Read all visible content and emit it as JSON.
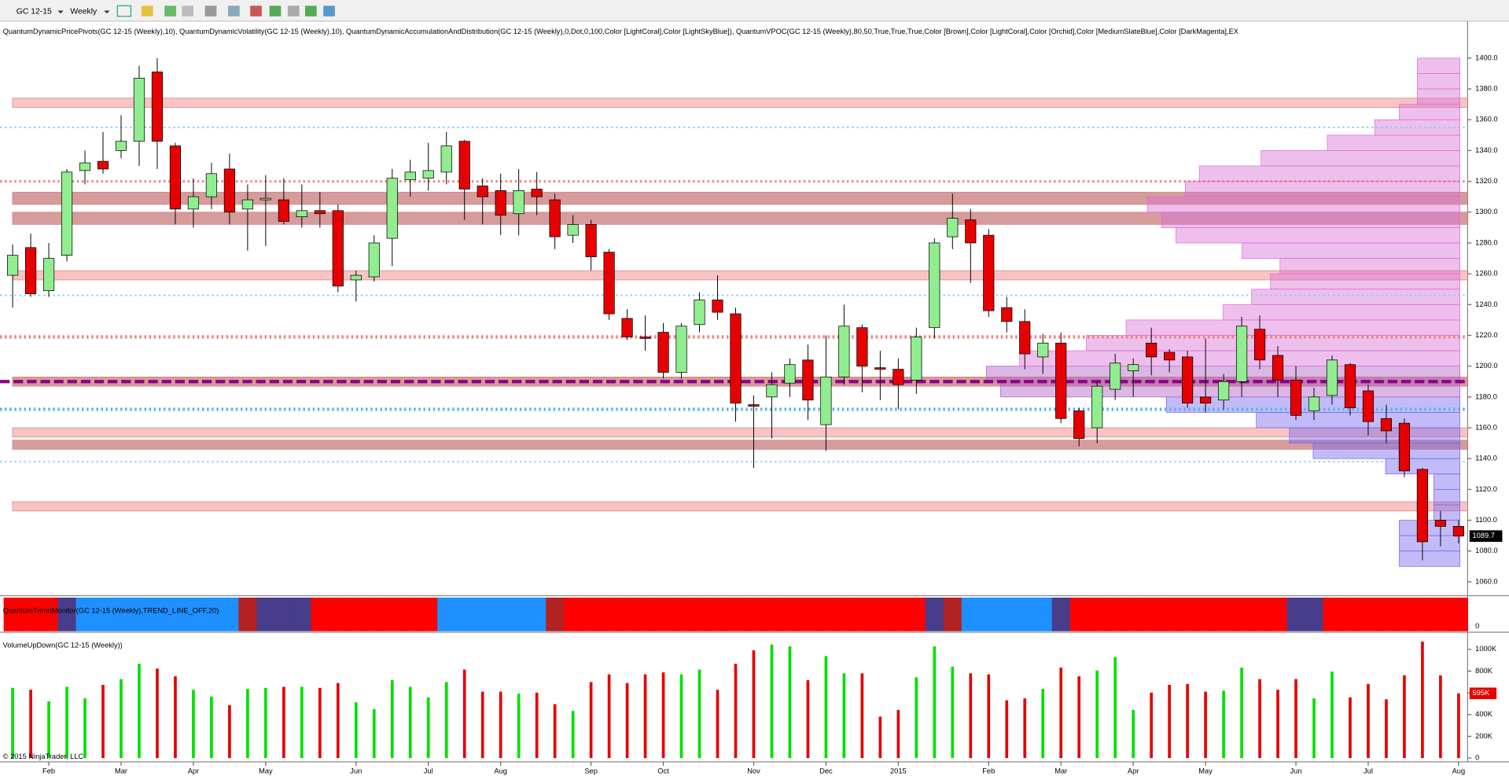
{
  "header": {
    "symbol": "GC 12-15",
    "interval": "Weekly"
  },
  "footer": "© 2015 NinjaTrader, LLC",
  "chart_data": [
    {
      "type": "candlestick",
      "title": "QuantumDynamicPricePivots(GC 12-15 (Weekly),10), QuantumDynamicVolatility(GC 12-15 (Weekly),10), QuantumDynamicAccumulationAndDistribution(GC 12-15 (Weekly),0,Dot,0,100,Color [LightCoral],Color [LightSkyBlue]), QuantumVPOC(GC 12-15 (Weekly),80,50,True,True,True,Color [Brown],Color [LightCoral],Color [Orchid],Color [MediumSlateBlue],Color [DarkMagenta],EX",
      "open": [
        1259,
        1277,
        1249,
        1272,
        1327,
        1333,
        1340,
        1346,
        1391,
        1343,
        1302,
        1310,
        1328,
        1302,
        1308,
        1308,
        1297,
        1301,
        1301,
        1256,
        1258,
        1283,
        1321,
        1322,
        1326,
        1346,
        1317,
        1314,
        1299,
        1315,
        1308,
        1285,
        1292,
        1274,
        1231,
        1219,
        1222,
        1196,
        1227,
        1243,
        1234,
        1175,
        1180,
        1189,
        1204,
        1162,
        1193,
        1225,
        1199,
        1198,
        1191,
        1225,
        1284,
        1295,
        1285,
        1238,
        1229,
        1206,
        1215,
        1171,
        1160,
        1185,
        1197,
        1215,
        1209,
        1206,
        1180,
        1178,
        1190,
        1224,
        1207,
        1191,
        1171,
        1181,
        1201,
        1184,
        1166,
        1163,
        1133,
        1100,
        1096
      ],
      "high": [
        1279,
        1286,
        1280,
        1328,
        1340,
        1352,
        1363,
        1395,
        1400,
        1345,
        1322,
        1332,
        1338,
        1318,
        1324,
        1322,
        1318,
        1313,
        1305,
        1262,
        1285,
        1328,
        1334,
        1345,
        1352,
        1347,
        1322,
        1325,
        1328,
        1326,
        1312,
        1298,
        1295,
        1276,
        1237,
        1233,
        1228,
        1228,
        1248,
        1259,
        1238,
        1181,
        1196,
        1205,
        1214,
        1220,
        1240,
        1227,
        1210,
        1205,
        1225,
        1283,
        1312,
        1302,
        1289,
        1245,
        1237,
        1221,
        1222,
        1173,
        1190,
        1208,
        1205,
        1225,
        1211,
        1210,
        1218,
        1195,
        1232,
        1233,
        1213,
        1200,
        1186,
        1207,
        1202,
        1188,
        1175,
        1166,
        1134,
        1106,
        1100
      ],
      "low": [
        1238,
        1245,
        1245,
        1268,
        1318,
        1325,
        1335,
        1330,
        1328,
        1292,
        1290,
        1302,
        1292,
        1275,
        1278,
        1292,
        1290,
        1290,
        1248,
        1242,
        1255,
        1265,
        1310,
        1314,
        1318,
        1295,
        1292,
        1285,
        1285,
        1298,
        1276,
        1280,
        1262,
        1230,
        1217,
        1210,
        1192,
        1192,
        1222,
        1230,
        1164,
        1134,
        1153,
        1180,
        1165,
        1145,
        1188,
        1183,
        1178,
        1172,
        1182,
        1218,
        1276,
        1254,
        1232,
        1222,
        1198,
        1195,
        1163,
        1148,
        1150,
        1178,
        1180,
        1194,
        1196,
        1173,
        1170,
        1172,
        1180,
        1198,
        1180,
        1165,
        1165,
        1175,
        1168,
        1155,
        1150,
        1128,
        1074,
        1083,
        1085
      ],
      "close": [
        1272,
        1247,
        1270,
        1326,
        1332,
        1328,
        1346,
        1387,
        1346,
        1302,
        1310,
        1325,
        1300,
        1308,
        1309,
        1294,
        1301,
        1299,
        1252,
        1259,
        1280,
        1322,
        1326,
        1327,
        1343,
        1315,
        1310,
        1298,
        1314,
        1310,
        1284,
        1292,
        1271,
        1234,
        1219,
        1218,
        1196,
        1226,
        1243,
        1235,
        1176,
        1174,
        1188,
        1201,
        1178,
        1193,
        1226,
        1200,
        1198,
        1188,
        1219,
        1280,
        1296,
        1280,
        1236,
        1229,
        1208,
        1215,
        1166,
        1153,
        1187,
        1202,
        1201,
        1206,
        1204,
        1176,
        1176,
        1190,
        1226,
        1204,
        1191,
        1168,
        1180,
        1204,
        1173,
        1164,
        1158,
        1132,
        1086,
        1096,
        1089.7
      ],
      "up_color": "#90ee90",
      "down_color": "#e60000",
      "ylim": [
        1051,
        1424
      ],
      "yticks": [
        {
          "value": 1060,
          "label": "1060.0"
        },
        {
          "value": 1080,
          "label": "1080.0"
        },
        {
          "value": 1100,
          "label": "1100.0"
        },
        {
          "value": 1120,
          "label": "1120.0"
        },
        {
          "value": 1140,
          "label": "1140.0"
        },
        {
          "value": 1160,
          "label": "1160.0"
        },
        {
          "value": 1180,
          "label": "1180.0"
        },
        {
          "value": 1200,
          "label": "1200.0"
        },
        {
          "value": 1220,
          "label": "1220.0"
        },
        {
          "value": 1240,
          "label": "1240.0"
        },
        {
          "value": 1260,
          "label": "1260.0"
        },
        {
          "value": 1280,
          "label": "1280.0"
        },
        {
          "value": 1300,
          "label": "1300.0"
        },
        {
          "value": 1320,
          "label": "1320.0"
        },
        {
          "value": 1340,
          "label": "1340.0"
        },
        {
          "value": 1360,
          "label": "1360.0"
        },
        {
          "value": 1380,
          "label": "1380.0"
        },
        {
          "value": 1400,
          "label": "1400.0"
        }
      ],
      "xlim": [
        -0.7,
        80.5
      ],
      "xticks": [
        {
          "value": 2,
          "label": "Feb"
        },
        {
          "value": 6,
          "label": "Mar"
        },
        {
          "value": 10,
          "label": "Apr"
        },
        {
          "value": 14,
          "label": "May"
        },
        {
          "value": 19,
          "label": "Jun"
        },
        {
          "value": 23,
          "label": "Jul"
        },
        {
          "value": 27,
          "label": "Aug"
        },
        {
          "value": 32,
          "label": "Sep"
        },
        {
          "value": 36,
          "label": "Oct"
        },
        {
          "value": 41,
          "label": "Nov"
        },
        {
          "value": 45,
          "label": "Dec"
        },
        {
          "value": 49,
          "label": "2015"
        },
        {
          "value": 54,
          "label": "Feb"
        },
        {
          "value": 58,
          "label": "Mar"
        },
        {
          "value": 62,
          "label": "Apr"
        },
        {
          "value": 66,
          "label": "May"
        },
        {
          "value": 71,
          "label": "Jun"
        },
        {
          "value": 75,
          "label": "Jul"
        },
        {
          "value": 80,
          "label": "Aug"
        }
      ],
      "zones": [
        {
          "low": 1368,
          "high": 1374,
          "color": "#f7b9b9"
        },
        {
          "low": 1305,
          "high": 1313,
          "color": "#cf8a8a"
        },
        {
          "low": 1292,
          "high": 1300,
          "color": "#cf8a8a"
        },
        {
          "low": 1256,
          "high": 1262,
          "color": "#f7b9b9"
        },
        {
          "low": 1187,
          "high": 1193,
          "color": "#cf8a8a"
        },
        {
          "low": 1154,
          "high": 1160,
          "color": "#f7b9b9"
        },
        {
          "low": 1146,
          "high": 1152,
          "color": "#cf8a8a"
        },
        {
          "low": 1106,
          "high": 1112,
          "color": "#f7b9b9"
        }
      ],
      "levels": [
        {
          "value": 1355,
          "color": "#87cefa",
          "width": 1.5
        },
        {
          "value": 1320,
          "color": "#f08080",
          "width": 2.5
        },
        {
          "value": 1246,
          "color": "#87cefa",
          "width": 1.5
        },
        {
          "value": 1219,
          "color": "#f08080",
          "width": 3.5
        },
        {
          "value": 1190,
          "color": "#8b008b",
          "width": 3.5
        },
        {
          "value": 1172,
          "color": "#5ab4f0",
          "width": 3.5
        },
        {
          "value": 1138,
          "color": "#87cefa",
          "width": 1.5
        }
      ],
      "profile": {
        "bins": [
          1070,
          1080,
          1090,
          1100,
          1110,
          1120,
          1130,
          1140,
          1150,
          1160,
          1170,
          1180,
          1190,
          1200,
          1210,
          1220,
          1230,
          1240,
          1250,
          1260,
          1270,
          1280,
          1290,
          1300,
          1310,
          1320,
          1330,
          1340,
          1350,
          1360,
          1370,
          1380,
          1390,
          1400
        ],
        "values": [
          12.8,
          12.8,
          12.8,
          5.5,
          5.5,
          5.5,
          15.7,
          31,
          36,
          43,
          62,
          97,
          100,
          93,
          78.9,
          70.5,
          50,
          44,
          40,
          38,
          46,
          60,
          63,
          66,
          58,
          55,
          42,
          28,
          18,
          12.8,
          9,
          9,
          9
        ],
        "colors": [
          "#7b68ee",
          "#7b68ee",
          "#7b68ee",
          "#7b68ee",
          "#7b68ee",
          "#7b68ee",
          "#7b68ee",
          "#7b68ee",
          "#7b68ee",
          "#7b68ee",
          "#7b68ee",
          "#b05fc8",
          "#b05fc8",
          "#da70d6",
          "#da70d6",
          "#da70d6",
          "#da70d6",
          "#da70d6",
          "#da70d6",
          "#da70d6",
          "#da70d6",
          "#da70d6",
          "#da70d6",
          "#da70d6",
          "#da70d6",
          "#da70d6",
          "#da70d6",
          "#da70d6",
          "#da70d6",
          "#da70d6",
          "#da70d6",
          "#da70d6",
          "#da70d6"
        ]
      }
    },
    {
      "type": "band",
      "title": "QuantumTrendMonitor(GC 12-15 (Weekly),TREND_LINE_OFF,20)",
      "yticks": [
        0
      ],
      "colors": [
        "#ff0000",
        "#ff0000",
        "#ff0000",
        "#483d8b",
        "#1e90ff",
        "#1e90ff",
        "#1e90ff",
        "#1e90ff",
        "#1e90ff",
        "#1e90ff",
        "#1e90ff",
        "#1e90ff",
        "#1e90ff",
        "#b22222",
        "#483d8b",
        "#483d8b",
        "#483d8b",
        "#ff0000",
        "#ff0000",
        "#ff0000",
        "#ff0000",
        "#ff0000",
        "#ff0000",
        "#ff0000",
        "#1e90ff",
        "#1e90ff",
        "#1e90ff",
        "#1e90ff",
        "#1e90ff",
        "#1e90ff",
        "#b22222",
        "#ff0000",
        "#ff0000",
        "#ff0000",
        "#ff0000",
        "#ff0000",
        "#ff0000",
        "#ff0000",
        "#ff0000",
        "#ff0000",
        "#ff0000",
        "#ff0000",
        "#ff0000",
        "#ff0000",
        "#ff0000",
        "#ff0000",
        "#ff0000",
        "#ff0000",
        "#ff0000",
        "#ff0000",
        "#ff0000",
        "#483d8b",
        "#b22222",
        "#1e90ff",
        "#1e90ff",
        "#1e90ff",
        "#1e90ff",
        "#1e90ff",
        "#483d8b",
        "#ff0000",
        "#ff0000",
        "#ff0000",
        "#ff0000",
        "#ff0000",
        "#ff0000",
        "#ff0000",
        "#ff0000",
        "#ff0000",
        "#ff0000",
        "#ff0000",
        "#ff0000",
        "#483d8b",
        "#483d8b",
        "#ff0000",
        "#ff0000",
        "#ff0000",
        "#ff0000",
        "#ff0000",
        "#ff0000",
        "#ff0000",
        "#ff0000"
      ]
    },
    {
      "type": "bar",
      "title": "VolumeUpDown(GC 12-15 (Weekly))",
      "values": [
        646000,
        628000,
        522000,
        655000,
        549000,
        673000,
        726000,
        867000,
        823000,
        752000,
        628000,
        566000,
        487000,
        637000,
        646000,
        655000,
        655000,
        646000,
        690000,
        513000,
        451000,
        717000,
        655000,
        558000,
        699000,
        814000,
        611000,
        611000,
        593000,
        602000,
        496000,
        434000,
        699000,
        770000,
        690000,
        770000,
        788000,
        770000,
        814000,
        628000,
        867000,
        991000,
        1044000,
        1027000,
        717000,
        938000,
        779000,
        779000,
        381000,
        442000,
        743000,
        1027000,
        841000,
        779000,
        770000,
        531000,
        549000,
        637000,
        832000,
        752000,
        805000,
        929000,
        442000,
        602000,
        673000,
        681000,
        611000,
        620000,
        832000,
        726000,
        628000,
        726000,
        549000,
        796000,
        558000,
        681000,
        540000,
        761000,
        1071000,
        761000,
        595000
      ],
      "last_label": "595K",
      "up_color": "#00e000",
      "down_color": "#e60000",
      "ylim": [
        0,
        1140000
      ],
      "yticks": [
        0,
        {
          "value": 200000,
          "label": "200K"
        },
        {
          "value": 400000,
          "label": "400K"
        },
        {
          "value": 600000,
          "label": "600K"
        },
        {
          "value": 800000,
          "label": "800K"
        },
        {
          "value": 1000000,
          "label": "1000K"
        }
      ]
    }
  ]
}
